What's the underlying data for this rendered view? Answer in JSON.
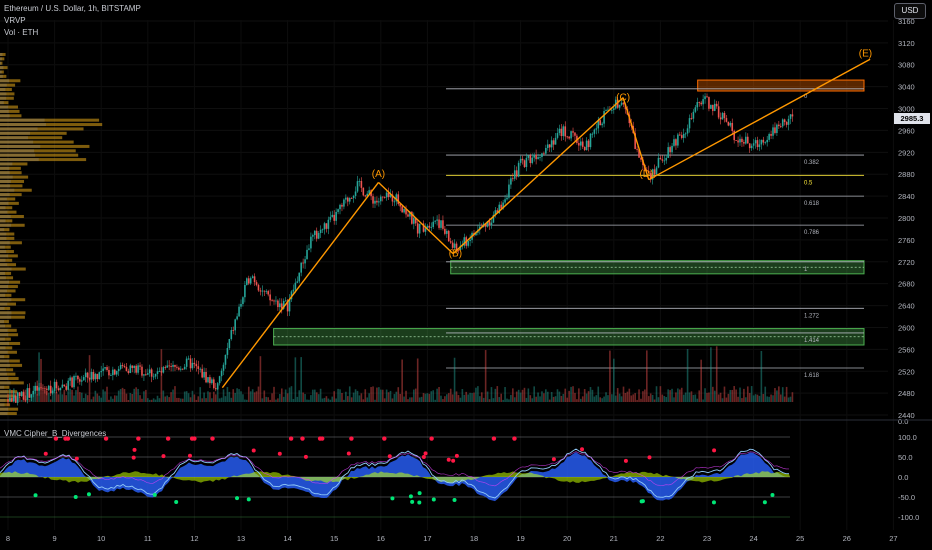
{
  "header": {
    "symbol": "Ethereum / U.S. Dollar, 1h, BITSTAMP",
    "indicator_1": "VRVP",
    "indicator_2": "Vol · ETH",
    "currency_button": "USD",
    "last_price": "2985.3"
  },
  "oscillator": {
    "name": "VMC Cipher_B_Divergences",
    "levels": [
      "100.0",
      "50.0",
      "0.0",
      "-50.0",
      "-100.0"
    ],
    "volume_zero": "0.0"
  },
  "chart_data": [
    {
      "type": "line",
      "title": "Ethereum / U.S. Dollar, 1h, BITSTAMP",
      "y_axis": {
        "ticks": [
          2440,
          2480,
          2520,
          2560,
          2600,
          2640,
          2680,
          2720,
          2760,
          2800,
          2840,
          2880,
          2920,
          2960,
          3000,
          3040,
          3080,
          3120,
          3160
        ],
        "range": [
          2420,
          3180
        ]
      },
      "x_axis": {
        "ticks": [
          "8",
          "9",
          "10",
          "11",
          "12",
          "13",
          "14",
          "15",
          "16",
          "17",
          "18",
          "19",
          "20",
          "21",
          "22",
          "23",
          "24",
          "25",
          "26",
          "27"
        ],
        "range_days": [
          8,
          27
        ]
      },
      "price_path": {
        "x_day": [
          8.0,
          8.6,
          9.2,
          9.8,
          10.5,
          11.2,
          11.9,
          12.5,
          12.8,
          13.2,
          13.6,
          14.0,
          14.5,
          15.0,
          15.5,
          15.9,
          16.3,
          16.8,
          17.2,
          17.6,
          18.0,
          18.5,
          19.0,
          19.4,
          19.9,
          20.4,
          20.8,
          21.2,
          21.5,
          21.8,
          22.2,
          22.6,
          22.9,
          23.3,
          23.6,
          24.0,
          24.4,
          24.8
        ],
        "y": [
          2468,
          2485,
          2495,
          2512,
          2528,
          2515,
          2535,
          2490,
          2590,
          2700,
          2650,
          2640,
          2760,
          2800,
          2860,
          2830,
          2840,
          2780,
          2800,
          2740,
          2770,
          2810,
          2900,
          2920,
          2960,
          2930,
          2990,
          3020,
          2920,
          2880,
          2930,
          2970,
          3020,
          2990,
          2950,
          2930,
          2960,
          2985
        ]
      },
      "wave_labels": [
        {
          "label": "(A)",
          "x_day": 15.95,
          "y": 2875
        },
        {
          "label": "(B)",
          "x_day": 17.6,
          "y": 2730
        },
        {
          "label": "(C)",
          "x_day": 21.2,
          "y": 3015
        },
        {
          "label": "(D)",
          "x_day": 21.7,
          "y": 2875
        },
        {
          "label": "(E)",
          "x_day": 26.4,
          "y": 3095
        }
      ],
      "wave_lines": [
        {
          "from": [
            12.6,
            2490
          ],
          "to": [
            15.95,
            2865
          ]
        },
        {
          "from": [
            15.95,
            2865
          ],
          "to": [
            17.55,
            2735
          ]
        },
        {
          "from": [
            17.55,
            2735
          ],
          "to": [
            21.2,
            3020
          ]
        },
        {
          "from": [
            21.2,
            3020
          ],
          "to": [
            21.75,
            2870
          ]
        },
        {
          "from": [
            21.75,
            2870
          ],
          "to": [
            26.5,
            3090
          ]
        }
      ],
      "fib_levels": [
        {
          "label": "0",
          "y": 3036
        },
        {
          "label": "0.382",
          "y": 2915
        },
        {
          "label": "0.5",
          "y": 2878
        },
        {
          "label": "0.618",
          "y": 2840
        },
        {
          "label": "0.786",
          "y": 2787
        },
        {
          "label": "1",
          "y": 2720
        },
        {
          "label": "1.272",
          "y": 2635
        },
        {
          "label": "1.414",
          "y": 2590
        },
        {
          "label": "1.618",
          "y": 2526
        }
      ],
      "zones": [
        {
          "kind": "resistance",
          "x_from": 22.8,
          "x_to": 27,
          "y_from": 3032,
          "y_to": 3052,
          "color": "#ff6d00"
        },
        {
          "kind": "support",
          "x_from": 17.5,
          "x_to": 27,
          "y_from": 2698,
          "y_to": 2722,
          "color": "#4caf50"
        },
        {
          "kind": "support",
          "x_from": 13.7,
          "x_to": 27,
          "y_from": 2568,
          "y_to": 2598,
          "color": "#4caf50"
        }
      ]
    },
    {
      "type": "area",
      "title": "VMC Cipher_B_Divergences",
      "y_axis": {
        "ticks": [
          100,
          50,
          0,
          -50,
          -100
        ],
        "range": [
          -110,
          110
        ]
      }
    }
  ],
  "colors": {
    "up": "#26a69a",
    "down": "#ef5350",
    "wave": "#ff9800",
    "fib": "#b2b5be",
    "profile": "#e6a817",
    "wave_blue": "#2962ff",
    "light_blue": "#90caf9"
  }
}
